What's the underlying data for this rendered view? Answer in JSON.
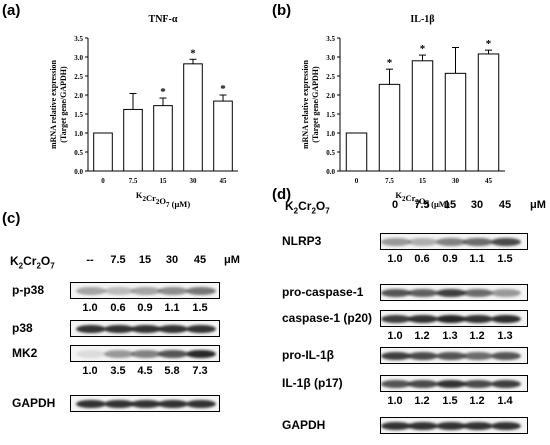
{
  "panels": {
    "a": {
      "label": "(a)"
    },
    "b": {
      "label": "(b)"
    },
    "c": {
      "label": "(c)"
    },
    "d": {
      "label": "(d)"
    }
  },
  "chart_data": [
    {
      "type": "bar",
      "panel": "a",
      "title": "TNF-α",
      "ylabel_line1": "mRNA relative expression",
      "ylabel_line2": "(Target gene/GAPDH)",
      "xlabel": "K2Cr2O7 (μM)",
      "categories": [
        "0",
        "7.5",
        "15",
        "30",
        "45"
      ],
      "values": [
        1.0,
        1.62,
        1.72,
        2.82,
        1.84
      ],
      "errors": [
        0,
        0.42,
        0.2,
        0.12,
        0.16
      ],
      "significant": [
        false,
        false,
        true,
        true,
        true
      ],
      "ylim": [
        0,
        3.5
      ],
      "yticks": [
        "0.0",
        "0.5",
        "1.0",
        "1.5",
        "2.0",
        "2.5",
        "3.0",
        "3.5"
      ],
      "marker": "*"
    },
    {
      "type": "bar",
      "panel": "b",
      "title": "IL-1β",
      "ylabel_line1": "mRNA relative expression",
      "ylabel_line2": "(Target gene/GAPDH)",
      "xlabel": "K2Cr2O7 (μM)",
      "categories": [
        "0",
        "7.5",
        "15",
        "30",
        "45"
      ],
      "values": [
        1.0,
        2.28,
        2.9,
        2.57,
        3.08
      ],
      "errors": [
        0,
        0.4,
        0.15,
        0.68,
        0.1
      ],
      "significant": [
        false,
        true,
        true,
        false,
        true
      ],
      "ylim": [
        0,
        3.5
      ],
      "yticks": [
        "0.0",
        "0.5",
        "1.0",
        "1.5",
        "2.0",
        "2.5",
        "3.0",
        "3.5"
      ],
      "marker": "*"
    }
  ],
  "blot_c": {
    "reagent": "K2Cr2O7",
    "unit": "μM",
    "doses": [
      "--",
      "7.5",
      "15",
      "30",
      "45"
    ],
    "rows": [
      {
        "label": "p-p38",
        "intensities": [
          0.35,
          0.25,
          0.35,
          0.45,
          0.55
        ]
      },
      {
        "label": "p38",
        "intensities": [
          0.85,
          0.85,
          0.85,
          0.85,
          0.85
        ]
      },
      {
        "label": "MK2",
        "intensities": [
          0.1,
          0.4,
          0.5,
          0.7,
          0.9
        ]
      },
      {
        "label": "GAPDH",
        "intensities": [
          0.85,
          0.85,
          0.85,
          0.85,
          0.85
        ]
      }
    ],
    "quant": [
      {
        "after_row": 0,
        "values": [
          "1.0",
          "0.6",
          "0.9",
          "1.1",
          "1.5"
        ]
      },
      {
        "after_row": 2,
        "values": [
          "1.0",
          "3.5",
          "4.5",
          "5.8",
          "7.3"
        ]
      }
    ]
  },
  "blot_d": {
    "reagent": "K2Cr2O7",
    "unit": "μM",
    "doses": [
      "0",
      "7.5",
      "15",
      "30",
      "45"
    ],
    "rows": [
      {
        "label": "NLRP3",
        "intensities": [
          0.4,
          0.3,
          0.5,
          0.6,
          0.75
        ]
      },
      {
        "label": "pro-caspase-1",
        "intensities": [
          0.7,
          0.65,
          0.8,
          0.6,
          0.4
        ]
      },
      {
        "label": "caspase-1 (p20)",
        "intensities": [
          0.8,
          0.85,
          0.9,
          0.85,
          0.88
        ]
      },
      {
        "label": "pro-IL-1β",
        "intensities": [
          0.8,
          0.75,
          0.7,
          0.6,
          0.7
        ]
      },
      {
        "label": "IL-1β (p17)",
        "intensities": [
          0.7,
          0.75,
          0.85,
          0.75,
          0.8
        ]
      },
      {
        "label": "GAPDH",
        "intensities": [
          0.85,
          0.85,
          0.85,
          0.85,
          0.85
        ]
      }
    ],
    "quant": [
      {
        "after_row": 0,
        "values": [
          "1.0",
          "0.6",
          "0.9",
          "1.1",
          "1.5"
        ]
      },
      {
        "after_row": 2,
        "values": [
          "1.0",
          "1.2",
          "1.3",
          "1.2",
          "1.3"
        ]
      },
      {
        "after_row": 4,
        "values": [
          "1.0",
          "1.2",
          "1.5",
          "1.2",
          "1.4"
        ]
      }
    ]
  }
}
